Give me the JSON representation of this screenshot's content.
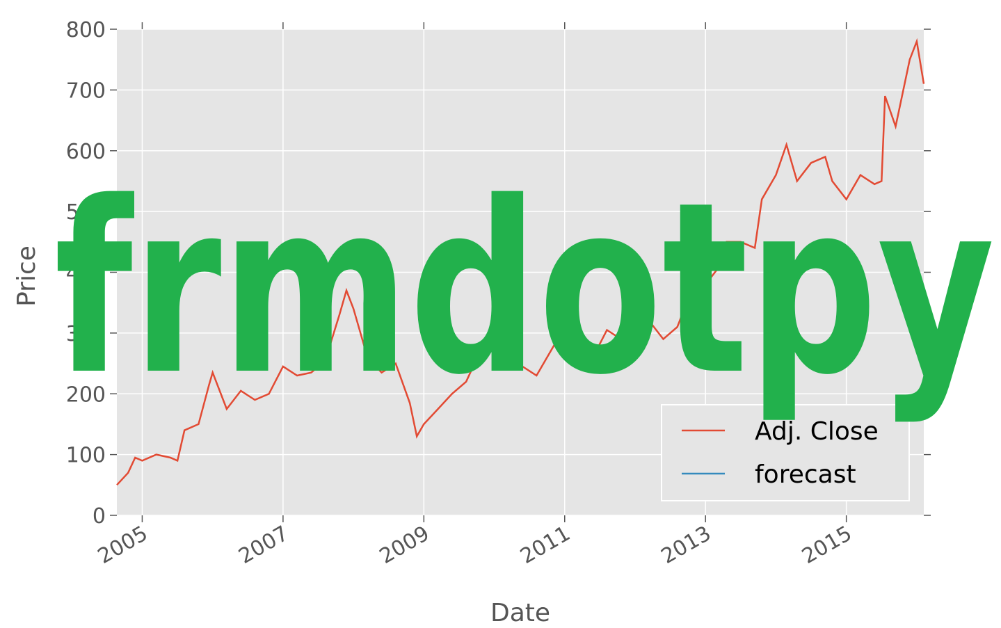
{
  "chart_data": {
    "type": "line",
    "xlabel": "Date",
    "ylabel": "Price",
    "watermark": "frmdotpy",
    "x": [
      2004.64,
      2004.8,
      2004.9,
      2005.0,
      2005.2,
      2005.4,
      2005.5,
      2005.6,
      2005.8,
      2005.95,
      2006.0,
      2006.2,
      2006.4,
      2006.6,
      2006.8,
      2007.0,
      2007.2,
      2007.4,
      2007.6,
      2007.8,
      2007.9,
      2008.0,
      2008.2,
      2008.4,
      2008.6,
      2008.8,
      2008.9,
      2009.0,
      2009.2,
      2009.4,
      2009.6,
      2009.8,
      2010.0,
      2010.2,
      2010.4,
      2010.6,
      2010.8,
      2011.0,
      2011.2,
      2011.4,
      2011.6,
      2011.8,
      2012.0,
      2012.2,
      2012.4,
      2012.6,
      2012.8,
      2013.0,
      2013.2,
      2013.3,
      2013.5,
      2013.7,
      2013.8,
      2014.0,
      2014.15,
      2014.3,
      2014.5,
      2014.7,
      2014.8,
      2015.0,
      2015.2,
      2015.4,
      2015.5,
      2015.55,
      2015.7,
      2015.9,
      2016.0,
      2016.1
    ],
    "series": [
      {
        "name": "Adj. Close",
        "color": "#e24a33",
        "values": [
          50,
          70,
          95,
          90,
          100,
          95,
          90,
          140,
          150,
          215,
          235,
          175,
          205,
          190,
          200,
          245,
          230,
          235,
          255,
          330,
          370,
          340,
          260,
          235,
          250,
          185,
          130,
          150,
          175,
          200,
          220,
          270,
          310,
          280,
          245,
          230,
          270,
          310,
          290,
          260,
          305,
          290,
          315,
          320,
          290,
          310,
          370,
          380,
          410,
          450,
          450,
          440,
          520,
          560,
          610,
          550,
          580,
          590,
          550,
          520,
          560,
          545,
          550,
          690,
          640,
          750,
          780,
          710
        ]
      },
      {
        "name": "forecast",
        "color": "#348abd",
        "values": [
          null,
          null,
          null,
          null,
          null,
          null,
          null,
          null,
          null,
          null,
          null,
          null,
          null,
          null,
          null,
          null,
          null,
          null,
          null,
          null,
          null,
          null,
          null,
          null,
          null,
          null,
          null,
          null,
          null,
          null,
          null,
          null,
          null,
          null,
          null,
          null,
          null,
          null,
          null,
          null,
          null,
          null,
          null,
          null,
          null,
          null,
          null,
          null,
          null,
          null,
          null,
          null,
          null,
          null,
          null,
          null,
          null,
          null,
          null,
          null,
          null,
          null,
          null,
          null,
          null,
          null,
          null,
          null
        ]
      }
    ],
    "xlim": [
      2004.64,
      2016.1
    ],
    "xticks": [
      2005,
      2007,
      2009,
      2011,
      2013,
      2015
    ],
    "ylim": [
      0,
      800
    ],
    "yticks": [
      0,
      100,
      200,
      300,
      400,
      500,
      600,
      700,
      800
    ],
    "grid": true,
    "legend": "lower right"
  }
}
